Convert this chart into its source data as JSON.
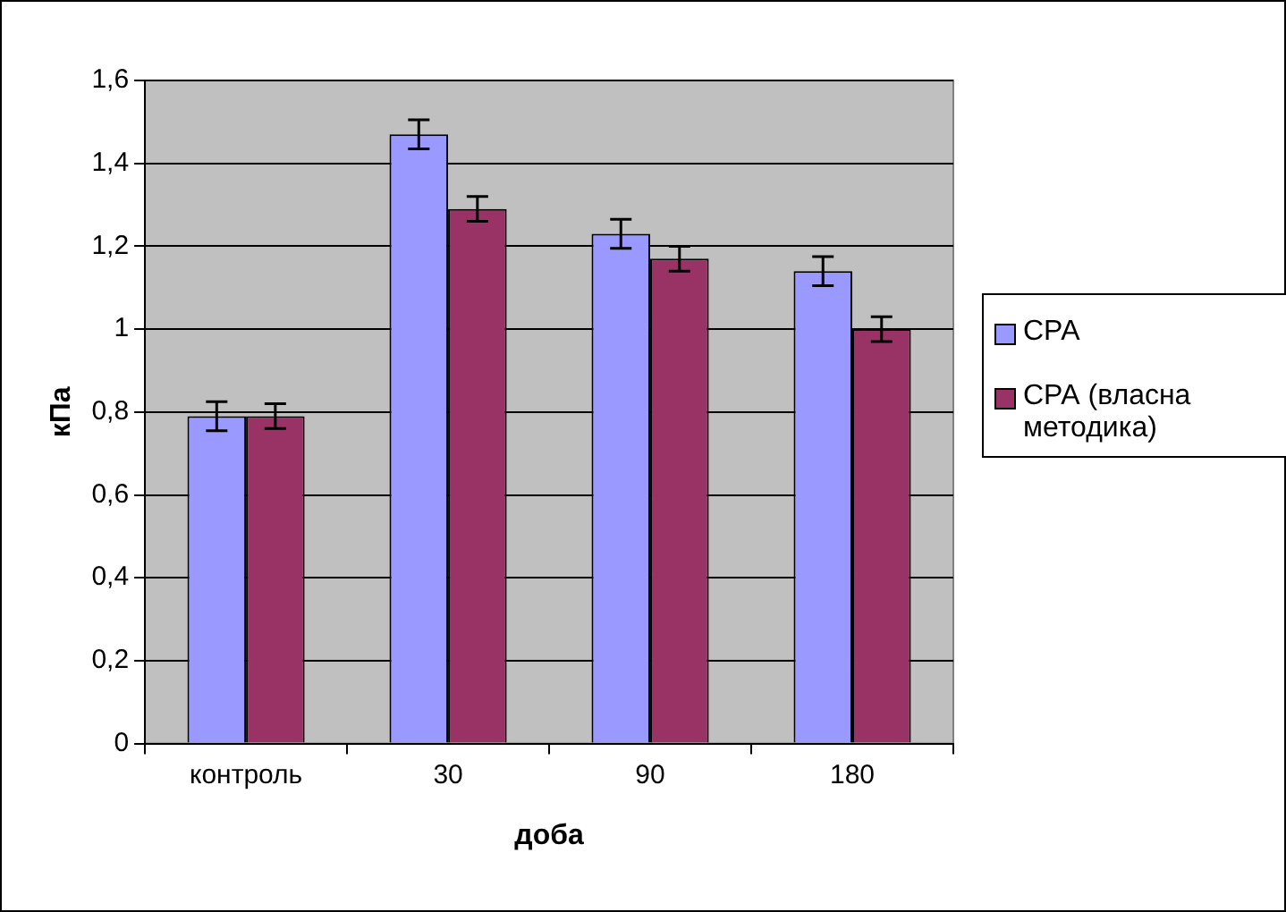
{
  "chart_data": {
    "type": "bar",
    "xlabel": "доба",
    "ylabel": "кПа",
    "categories": [
      "контроль",
      "30",
      "90",
      "180"
    ],
    "series": [
      {
        "name": "СРА",
        "color": "#9999ff",
        "values": [
          0.79,
          1.47,
          1.23,
          1.14
        ],
        "errors": [
          0.035,
          0.035,
          0.035,
          0.035
        ]
      },
      {
        "name": "СРА (власна методика)",
        "color": "#993366",
        "values": [
          0.79,
          1.29,
          1.17,
          1.0
        ],
        "errors": [
          0.03,
          0.03,
          0.03,
          0.03
        ]
      }
    ],
    "ylim": [
      0,
      1.6
    ],
    "yticks": [
      0,
      {
        "value": 0.2,
        "label": "0,2"
      },
      {
        "value": 0.4,
        "label": "0,4"
      },
      {
        "value": 0.6,
        "label": "0,6"
      },
      {
        "value": 0.8,
        "label": "0,8"
      },
      1,
      {
        "value": 1.2,
        "label": "1,2"
      },
      {
        "value": 1.4,
        "label": "1,4"
      },
      {
        "value": 1.6,
        "label": "1,6"
      }
    ],
    "grid": "y",
    "legend": "right"
  }
}
